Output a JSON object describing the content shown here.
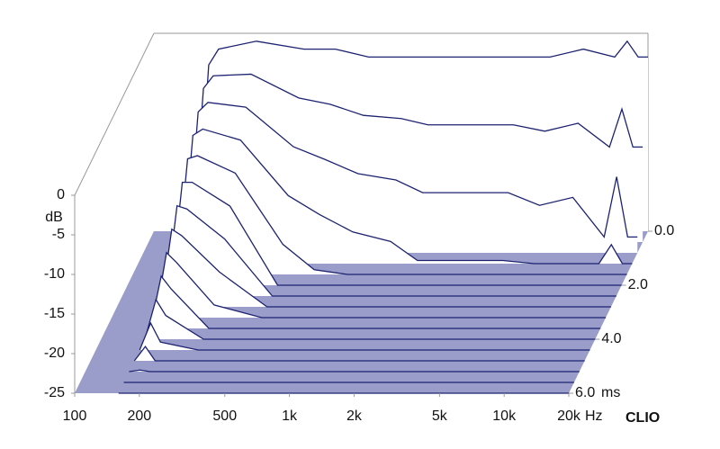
{
  "chart_data": {
    "type": "waterfall",
    "x": [
      160,
      180,
      200,
      300,
      500,
      700,
      1000,
      1500,
      2000,
      3000,
      5000,
      7000,
      10000,
      14000,
      16000,
      18000,
      20000
    ],
    "xlim": [
      100,
      20000
    ],
    "xscale": "log",
    "xticks": [
      100,
      200,
      500,
      {
        "value": 1000,
        "label": "1k"
      },
      {
        "value": 2000,
        "label": "2k"
      },
      {
        "value": 5000,
        "label": "5k"
      },
      {
        "value": 10000,
        "label": "10k"
      },
      {
        "value": 20000,
        "label": "20k"
      }
    ],
    "x_unit": "Hz",
    "ylabel": "dB",
    "ylim": [
      -25,
      0
    ],
    "yticks": [
      0,
      -5,
      -10,
      -15,
      -20,
      -25
    ],
    "zlim": [
      0,
      6
    ],
    "zticks": [
      {
        "value": 0,
        "label": "0.0"
      },
      {
        "value": 2,
        "label": "2.0"
      },
      {
        "value": 4,
        "label": "4.0"
      },
      {
        "value": 6,
        "label": "6.0"
      }
    ],
    "z_unit": "ms",
    "brand": "CLIO",
    "color": "#1c2270",
    "floor_color": "#9a9cca",
    "slices": [
      {
        "t": 0,
        "values": [
          -25,
          -4,
          -2,
          -1,
          -2,
          -2,
          -3,
          -3,
          -3,
          -3,
          -3,
          -3,
          -2,
          -3,
          -1,
          -3,
          -3
        ]
      },
      {
        "t": 0.4,
        "values": [
          -25,
          -5.6,
          -4,
          -3.8,
          -6.8,
          -7.6,
          -9,
          -9.4,
          -10.2,
          -10.2,
          -10.2,
          -11,
          -10,
          -13,
          -8.2,
          -13,
          -13
        ]
      },
      {
        "t": 0.8,
        "values": [
          -25,
          -7.2,
          -6,
          -6.6,
          -11.6,
          -13.2,
          -15,
          -15.8,
          -17.4,
          -17.4,
          -17.4,
          -19,
          -18,
          -23,
          -15.4,
          -23,
          -23
        ]
      },
      {
        "t": 1.2,
        "values": [
          -25,
          -8.8,
          -8,
          -9.4,
          -16.4,
          -18.8,
          -21,
          -22.2,
          -24.6,
          -24.6,
          -24.6,
          -25,
          -25,
          -25,
          -22.6,
          -25,
          -25
        ]
      },
      {
        "t": 1.6,
        "values": [
          -25,
          -10.4,
          -10,
          -12.2,
          -21.2,
          -24.4,
          -25,
          -25,
          -25,
          -25,
          -25,
          -25,
          -25,
          -25,
          -25,
          -25,
          -25
        ]
      },
      {
        "t": 2.0,
        "values": [
          -25,
          -12,
          -12,
          -15,
          -25,
          -25,
          -25,
          -25,
          -25,
          -25,
          -25,
          -25,
          -25,
          -25,
          -25,
          -25,
          -25
        ]
      },
      {
        "t": 2.4,
        "values": [
          -25,
          -13.6,
          -14,
          -17.8,
          -25,
          -25,
          -25,
          -25,
          -25,
          -25,
          -25,
          -25,
          -25,
          -25,
          -25,
          -25,
          -25
        ]
      },
      {
        "t": 2.8,
        "values": [
          -25,
          -15.2,
          -16,
          -20.6,
          -25,
          -25,
          -25,
          -25,
          -25,
          -25,
          -25,
          -25,
          -25,
          -25,
          -25,
          -25,
          -25
        ]
      },
      {
        "t": 3.2,
        "values": [
          -25,
          -16.8,
          -18,
          -23.4,
          -25,
          -25,
          -25,
          -25,
          -25,
          -25,
          -25,
          -25,
          -25,
          -25,
          -25,
          -25,
          -25
        ]
      },
      {
        "t": 3.6,
        "values": [
          -25,
          -18.4,
          -20,
          -25,
          -25,
          -25,
          -25,
          -25,
          -25,
          -25,
          -25,
          -25,
          -25,
          -25,
          -25,
          -25,
          -25
        ]
      },
      {
        "t": 4.0,
        "values": [
          -25,
          -20,
          -22,
          -25,
          -25,
          -25,
          -25,
          -25,
          -25,
          -25,
          -25,
          -25,
          -25,
          -25,
          -25,
          -25,
          -25
        ]
      },
      {
        "t": 4.4,
        "values": [
          -25,
          -21.6,
          -24,
          -25,
          -25,
          -25,
          -25,
          -25,
          -25,
          -25,
          -25,
          -25,
          -25,
          -25,
          -25,
          -25,
          -25
        ]
      },
      {
        "t": 4.8,
        "values": [
          -25,
          -23.2,
          -25,
          -25,
          -25,
          -25,
          -25,
          -25,
          -25,
          -25,
          -25,
          -25,
          -25,
          -25,
          -25,
          -25,
          -25
        ]
      },
      {
        "t": 5.2,
        "values": [
          -25,
          -24.8,
          -25,
          -25,
          -25,
          -25,
          -25,
          -25,
          -25,
          -25,
          -25,
          -25,
          -25,
          -25,
          -25,
          -25,
          -25
        ]
      },
      {
        "t": 5.6,
        "values": [
          -25,
          -25,
          -25,
          -25,
          -25,
          -25,
          -25,
          -25,
          -25,
          -25,
          -25,
          -25,
          -25,
          -25,
          -25,
          -25,
          -25
        ]
      },
      {
        "t": 6.0,
        "values": [
          -25,
          -25,
          -25,
          -25,
          -25,
          -25,
          -25,
          -25,
          -25,
          -25,
          -25,
          -25,
          -25,
          -25,
          -25,
          -25,
          -25
        ]
      }
    ]
  }
}
